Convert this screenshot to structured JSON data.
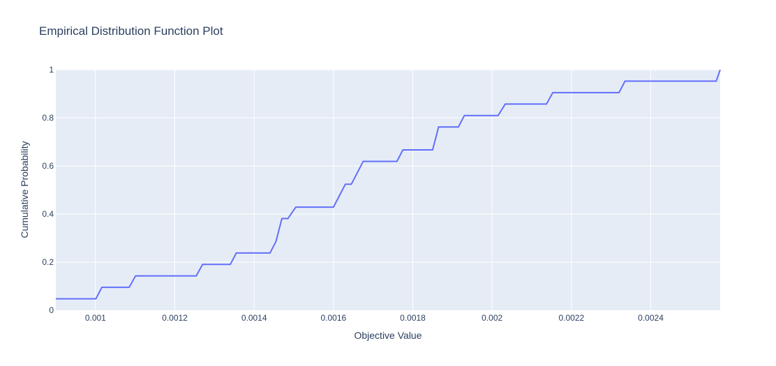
{
  "chart_data": {
    "type": "line",
    "title": "Empirical Distribution Function Plot",
    "xlabel": "Objective Value",
    "ylabel": "Cumulative Probability",
    "xlim": [
      0.0009,
      0.002575
    ],
    "ylim": [
      0,
      1
    ],
    "x_ticks": [
      {
        "value": 0.001,
        "label": "0.001"
      },
      {
        "value": 0.0012,
        "label": "0.0012"
      },
      {
        "value": 0.0014,
        "label": "0.0014"
      },
      {
        "value": 0.0016,
        "label": "0.0016"
      },
      {
        "value": 0.0018,
        "label": "0.0018"
      },
      {
        "value": 0.002,
        "label": "0.002"
      },
      {
        "value": 0.0022,
        "label": "0.0022"
      },
      {
        "value": 0.0024,
        "label": "0.0024"
      }
    ],
    "y_ticks": [
      {
        "value": 0,
        "label": "0"
      },
      {
        "value": 0.2,
        "label": "0.2"
      },
      {
        "value": 0.4,
        "label": "0.4"
      },
      {
        "value": 0.6,
        "label": "0.6"
      },
      {
        "value": 0.8,
        "label": "0.8"
      },
      {
        "value": 1,
        "label": "1"
      }
    ],
    "grid": true,
    "colors": {
      "line": "#636efa",
      "plot_bg": "#e5ecf6",
      "grid": "#ffffff",
      "text": "#2a3f5f"
    },
    "series": [
      {
        "x": [
          0.0009,
          0.001001,
          0.001016,
          0.001085,
          0.001101,
          0.001254,
          0.00127,
          0.00134,
          0.001355,
          0.00144,
          0.001455,
          0.00147,
          0.001485,
          0.001505,
          0.0016,
          0.00163,
          0.001645,
          0.001675,
          0.00176,
          0.001775,
          0.00185,
          0.001865,
          0.001915,
          0.00193,
          0.002015,
          0.002033,
          0.002137,
          0.002153,
          0.00232,
          0.002335,
          0.002565,
          0.002575
        ],
        "y": [
          0.0476,
          0.0476,
          0.0952,
          0.0952,
          0.1429,
          0.1429,
          0.1905,
          0.1905,
          0.2381,
          0.2381,
          0.2857,
          0.381,
          0.381,
          0.4286,
          0.4286,
          0.5238,
          0.5238,
          0.619,
          0.619,
          0.6667,
          0.6667,
          0.7619,
          0.7619,
          0.8095,
          0.8095,
          0.8571,
          0.8571,
          0.9048,
          0.9048,
          0.9524,
          0.9524,
          1.0
        ]
      }
    ]
  }
}
